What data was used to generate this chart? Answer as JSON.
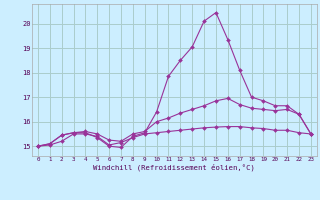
{
  "xlabel": "Windchill (Refroidissement éolien,°C)",
  "bg_color": "#cceeff",
  "grid_color": "#aacccc",
  "line_color": "#993399",
  "x_ticks": [
    0,
    1,
    2,
    3,
    4,
    5,
    6,
    7,
    8,
    9,
    10,
    11,
    12,
    13,
    14,
    15,
    16,
    17,
    18,
    19,
    20,
    21,
    22,
    23
  ],
  "y_ticks": [
    15,
    16,
    17,
    18,
    19,
    20
  ],
  "xlim": [
    -0.5,
    23.5
  ],
  "ylim": [
    14.6,
    20.8
  ],
  "line1_x": [
    0,
    1,
    2,
    3,
    4,
    5,
    6,
    7,
    8,
    9,
    10,
    11,
    12,
    13,
    14,
    15,
    16,
    17,
    18,
    19,
    20,
    21,
    22,
    23
  ],
  "line1_y": [
    15.0,
    15.1,
    15.45,
    15.55,
    15.55,
    15.35,
    15.0,
    14.95,
    15.4,
    15.55,
    16.4,
    17.85,
    18.5,
    19.05,
    20.1,
    20.45,
    19.35,
    18.1,
    17.0,
    16.85,
    16.65,
    16.65,
    16.3,
    15.5
  ],
  "line2_x": [
    0,
    1,
    2,
    3,
    4,
    5,
    6,
    7,
    8,
    9,
    10,
    11,
    12,
    13,
    14,
    15,
    16,
    17,
    18,
    19,
    20,
    21,
    22,
    23
  ],
  "line2_y": [
    15.0,
    15.1,
    15.45,
    15.55,
    15.6,
    15.5,
    15.25,
    15.2,
    15.5,
    15.6,
    16.0,
    16.15,
    16.35,
    16.5,
    16.65,
    16.85,
    16.95,
    16.7,
    16.55,
    16.5,
    16.45,
    16.5,
    16.3,
    15.5
  ],
  "line3_x": [
    0,
    1,
    2,
    3,
    4,
    5,
    6,
    7,
    8,
    9,
    10,
    11,
    12,
    13,
    14,
    15,
    16,
    17,
    18,
    19,
    20,
    21,
    22,
    23
  ],
  "line3_y": [
    15.0,
    15.05,
    15.2,
    15.5,
    15.5,
    15.4,
    15.05,
    15.15,
    15.35,
    15.5,
    15.55,
    15.6,
    15.65,
    15.7,
    15.75,
    15.78,
    15.8,
    15.8,
    15.75,
    15.72,
    15.65,
    15.65,
    15.55,
    15.5
  ]
}
